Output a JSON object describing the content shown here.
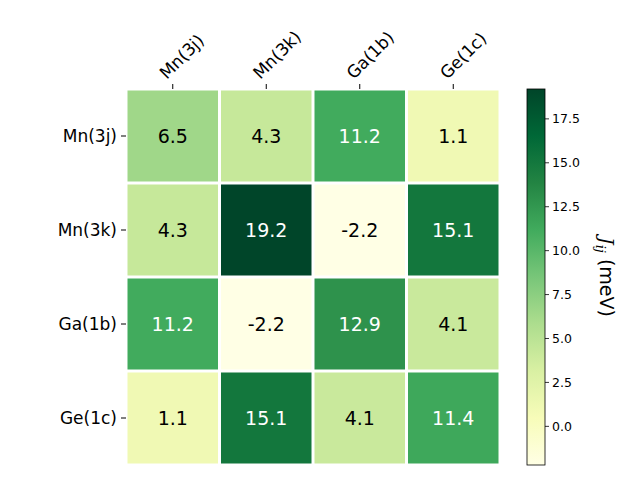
{
  "chart_data": {
    "type": "heatmap",
    "x_categories": [
      "Mn(3j)",
      "Mn(3k)",
      "Ga(1b)",
      "Ge(1c)"
    ],
    "y_categories": [
      "Mn(3j)",
      "Mn(3k)",
      "Ga(1b)",
      "Ge(1c)"
    ],
    "cells": [
      [
        6.5,
        4.3,
        11.2,
        1.1
      ],
      [
        4.3,
        19.2,
        -2.2,
        15.1
      ],
      [
        11.2,
        -2.2,
        12.9,
        4.1
      ],
      [
        1.1,
        15.1,
        4.1,
        11.4
      ]
    ],
    "data_labels": true,
    "color": "YlGn",
    "colorbar_range": [
      -2.2,
      19.2
    ],
    "colorbar_ticks": [
      {
        "value": 0,
        "label": "0.0"
      },
      2.5,
      {
        "value": 5,
        "label": "5.0"
      },
      7.5,
      {
        "value": 10,
        "label": "10.0"
      },
      12.5,
      {
        "value": 15,
        "label": "15.0"
      },
      17.5
    ],
    "colorbar_label": {
      "symbol": "J",
      "subscript": "ij",
      "unit": "(meV)"
    }
  }
}
